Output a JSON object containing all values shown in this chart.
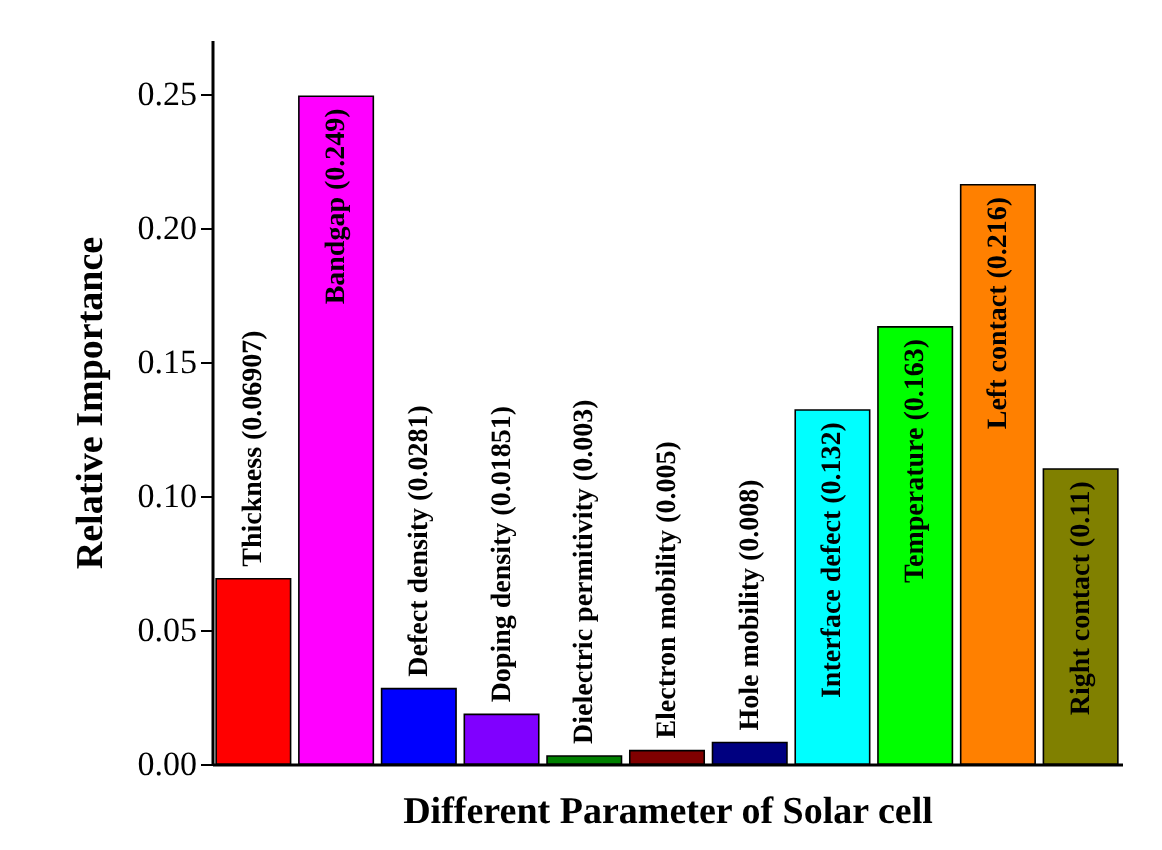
{
  "chart_data": {
    "type": "bar",
    "xlabel": "Different Parameter of Solar cell",
    "ylabel": "Relative Importance",
    "categories": [
      null,
      null,
      null,
      null,
      null,
      null,
      null,
      null,
      null,
      null,
      null
    ],
    "values": [
      0.06907,
      0.249,
      0.0281,
      0.01851,
      0.003,
      0.005,
      0.008,
      0.132,
      0.163,
      0.216,
      0.11
    ],
    "value_labels": [
      "Thickness (0.06907)",
      "Bandgap (0.249)",
      "Defect density (0.0281)",
      "Doping density (0.01851)",
      "Dielectric permitivity (0.003)",
      "Electron mobility (0.005)",
      "Hole mobility (0.008)",
      "Interface defect (0.132)",
      "Temperature (0.163)",
      "Left contact (0.216)",
      "Right contact (0.11)"
    ],
    "colors": [
      "#ff0000",
      "#ff00ff",
      "#0000ff",
      "#8000ff",
      "#008000",
      "#800000",
      "#000080",
      "#00ffff",
      "#00ff00",
      "#ff8000",
      "#808000"
    ],
    "ylim": [
      0,
      0.27
    ],
    "yticks": [
      {
        "value": 0,
        "label": "0.00"
      },
      {
        "value": 0.05,
        "label": "0.05"
      },
      {
        "value": 0.1,
        "label": "0.10"
      },
      {
        "value": 0.15,
        "label": "0.15"
      },
      {
        "value": 0.2,
        "label": "0.20"
      },
      {
        "value": 0.25,
        "label": "0.25"
      }
    ],
    "grid": false
  }
}
